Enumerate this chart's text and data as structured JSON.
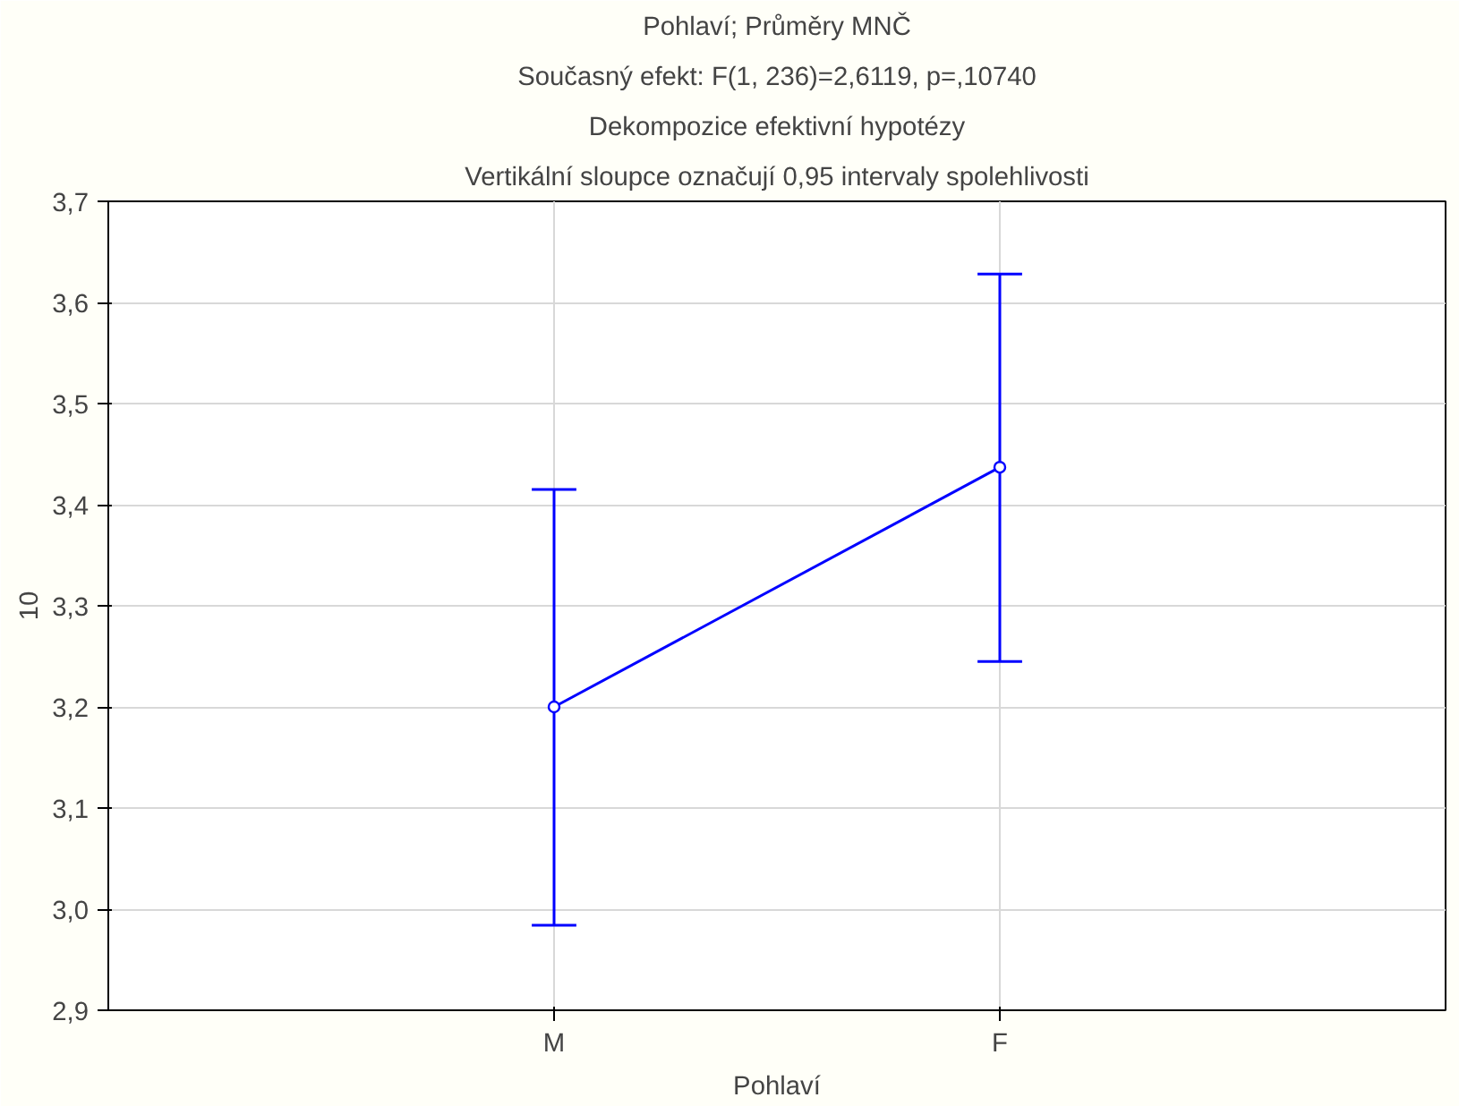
{
  "chart_data": {
    "type": "line",
    "title": "Pohlaví; Průměry MNČ",
    "subtitle": "Současný efekt: F(1, 236)=2,6119, p=,10740",
    "annotations": [
      "Dekompozice efektivní hypotézy",
      "Vertikální sloupce označují 0,95 intervaly spolehlivosti"
    ],
    "xlabel": "Pohlaví",
    "ylabel": "10",
    "categories": [
      "M",
      "F"
    ],
    "series": [
      {
        "color": "#0000ff",
        "values": [
          3.2,
          3.437
        ],
        "errors": [
          [
            2.984,
            3.415
          ],
          [
            3.245,
            3.628
          ]
        ]
      }
    ],
    "ylim": [
      2.9,
      3.7
    ],
    "yticks": [
      {
        "value": 2.9,
        "label": "2,9"
      },
      {
        "value": 3.0,
        "label": "3,0"
      },
      {
        "value": 3.1,
        "label": "3,1"
      },
      {
        "value": 3.2,
        "label": "3,2"
      },
      {
        "value": 3.3,
        "label": "3,3"
      },
      {
        "value": 3.4,
        "label": "3,4"
      },
      {
        "value": 3.5,
        "label": "3,5"
      },
      {
        "value": 3.6,
        "label": "3,6"
      },
      {
        "value": 3.7,
        "label": "3,7"
      }
    ],
    "grid": true,
    "marker": "circle",
    "line_style": "solid"
  }
}
